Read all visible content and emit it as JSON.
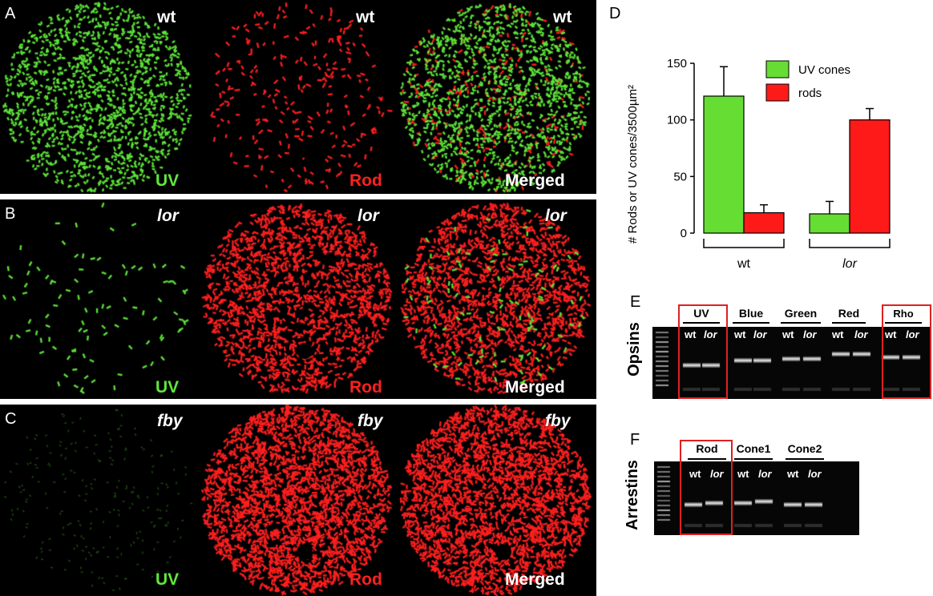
{
  "panels": {
    "A": {
      "letter": "A",
      "genotype": "wt",
      "channels": [
        "UV",
        "Rod",
        "Merged"
      ]
    },
    "B": {
      "letter": "B",
      "genotype": "lor",
      "channels": [
        "UV",
        "Rod",
        "Merged"
      ]
    },
    "C": {
      "letter": "C",
      "genotype": "fby",
      "channels": [
        "UV",
        "Rod",
        "Merged"
      ]
    }
  },
  "chart_panel": {
    "letter": "D"
  },
  "chart_data": {
    "type": "bar",
    "title": "",
    "categories": [
      "wt",
      "lor"
    ],
    "series": [
      {
        "name": "UV cones",
        "values": [
          121,
          17
        ],
        "errors": [
          26,
          11
        ],
        "color": "#66dd33"
      },
      {
        "name": "rods",
        "values": [
          18,
          100
        ],
        "errors": [
          7,
          10
        ],
        "color": "#ff1a1a"
      }
    ],
    "ylabel": "# Rods or UV cones/3500µm²",
    "ylim": [
      0,
      150
    ],
    "yticks": [
      "0",
      "50",
      "100",
      "150"
    ],
    "legend": "top-right"
  },
  "gel_E": {
    "letter": "E",
    "side_label": "Opsins",
    "groups": [
      "UV",
      "Blue",
      "Green",
      "Red",
      "Rho"
    ],
    "lanes": [
      "wt",
      "lor",
      "wt",
      "lor",
      "wt",
      "lor",
      "wt",
      "lor",
      "wt",
      "lor"
    ],
    "highlighted": [
      "UV",
      "Rho"
    ]
  },
  "gel_F": {
    "letter": "F",
    "side_label": "Arrestins",
    "groups": [
      "Rod",
      "Cone1",
      "Cone2"
    ],
    "lanes": [
      "wt",
      "lor",
      "wt",
      "lor",
      "wt",
      "lor"
    ],
    "highlighted": [
      "Rod"
    ]
  },
  "colors": {
    "uv": "#5fe83a",
    "rod": "#ff2020",
    "highlight": "#e02020"
  }
}
